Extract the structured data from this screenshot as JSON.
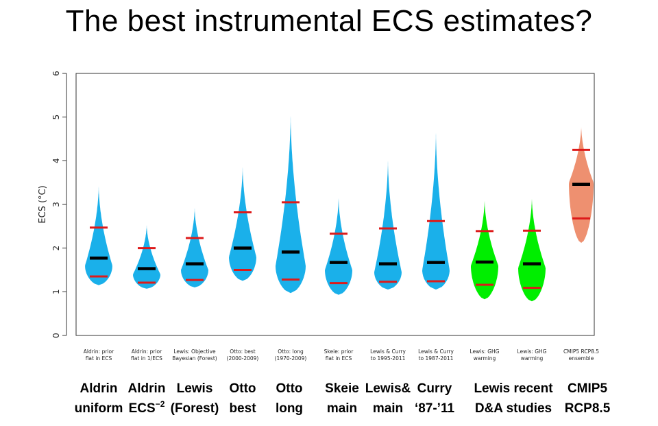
{
  "title": "The best instrumental ECS estimates?",
  "colors": {
    "blue": "#1ab0ea",
    "green": "#00ee00",
    "salmon": "#ee9070",
    "median": "#000000",
    "quantile": "#dd1a1a"
  },
  "chart_data": {
    "type": "violin",
    "ylabel": "ECS (°C)",
    "ylim": [
      0,
      6
    ],
    "yticks": [
      0,
      1,
      2,
      3,
      4,
      5,
      6
    ],
    "grid": false,
    "series": [
      {
        "label": [
          "Aldrin: prior",
          "flat in ECS"
        ],
        "color": "blue",
        "min": 1.15,
        "max": 3.45,
        "mode": 1.6,
        "median": 1.77,
        "p_low": 1.35,
        "p_high": 2.47,
        "half_width": 20
      },
      {
        "label": [
          "Aldrin: prior",
          "flat in 1/ECS"
        ],
        "color": "blue",
        "min": 1.07,
        "max": 2.55,
        "mode": 1.4,
        "median": 1.53,
        "p_low": 1.21,
        "p_high": 2.0,
        "half_width": 20
      },
      {
        "label": [
          "Lewis: Objective",
          "Bayesian (Forest)"
        ],
        "color": "blue",
        "min": 1.1,
        "max": 2.95,
        "mode": 1.5,
        "median": 1.64,
        "p_low": 1.27,
        "p_high": 2.23,
        "half_width": 20
      },
      {
        "label": [
          "Otto: best",
          "(2000-2009)"
        ],
        "color": "blue",
        "min": 1.25,
        "max": 3.9,
        "mode": 1.8,
        "median": 2.0,
        "p_low": 1.5,
        "p_high": 2.82,
        "half_width": 20
      },
      {
        "label": [
          "Otto: long",
          "(1970-2009)"
        ],
        "color": "blue",
        "min": 0.97,
        "max": 5.1,
        "mode": 1.6,
        "median": 1.91,
        "p_low": 1.28,
        "p_high": 3.05,
        "half_width": 22
      },
      {
        "label": [
          "Skeie: prior",
          "flat in ECS"
        ],
        "color": "blue",
        "min": 0.93,
        "max": 3.18,
        "mode": 1.5,
        "median": 1.67,
        "p_low": 1.2,
        "p_high": 2.33,
        "half_width": 20
      },
      {
        "label": [
          "Lewis & Curry",
          "to 1995-2011"
        ],
        "color": "blue",
        "min": 1.05,
        "max": 4.05,
        "mode": 1.45,
        "median": 1.64,
        "p_low": 1.23,
        "p_high": 2.45,
        "half_width": 20
      },
      {
        "label": [
          "Lewis & Curry",
          "to 1987-2011"
        ],
        "color": "blue",
        "min": 1.05,
        "max": 4.7,
        "mode": 1.5,
        "median": 1.67,
        "p_low": 1.24,
        "p_high": 2.62,
        "half_width": 20
      },
      {
        "label": [
          "Lewis: GHG",
          "warming"
        ],
        "color": "green",
        "min": 0.83,
        "max": 3.12,
        "mode": 1.6,
        "median": 1.68,
        "p_low": 1.16,
        "p_high": 2.39,
        "half_width": 20
      },
      {
        "label": [
          "Lewis: GHG",
          "warming"
        ],
        "color": "green",
        "min": 0.78,
        "max": 3.17,
        "mode": 1.55,
        "median": 1.64,
        "p_low": 1.09,
        "p_high": 2.4,
        "half_width": 20
      },
      {
        "label": [
          "CMIP5 RCP8.5",
          "ensemble"
        ],
        "color": "salmon",
        "min": 2.12,
        "max": 4.82,
        "mode": 3.5,
        "median": 3.46,
        "p_low": 2.68,
        "p_high": 4.25,
        "half_width": 18
      }
    ]
  },
  "bottom_labels": [
    {
      "line1": "Aldrin",
      "line2": "uniform"
    },
    {
      "line1": "Aldrin",
      "line2": "ECS",
      "sup": "−2"
    },
    {
      "line1": "Lewis",
      "line2": "(Forest)"
    },
    {
      "line1": "Otto",
      "line2": "best"
    },
    {
      "line1": "Otto",
      "line2": "long"
    },
    {
      "line1": "Skeie",
      "line2": "main"
    },
    {
      "line1": "Lewis&",
      "line2": "main"
    },
    {
      "line1": "Curry",
      "line2": "‘87-’11"
    },
    {
      "line1": "Lewis recent",
      "line2": "D&A studies"
    },
    {
      "line1": "CMIP5",
      "line2": "RCP8.5"
    }
  ]
}
